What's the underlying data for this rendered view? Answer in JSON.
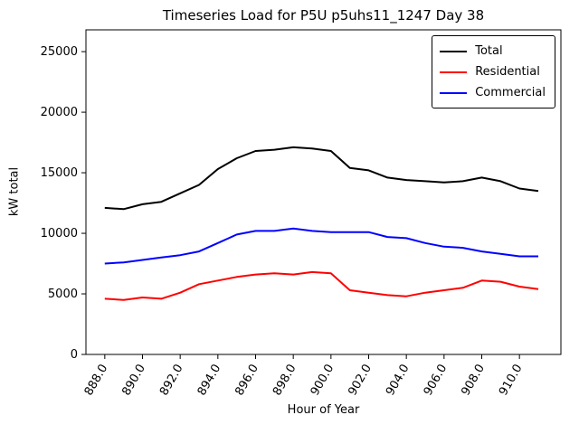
{
  "chart_data": {
    "type": "line",
    "title": "Timeseries Load for P5U p5uhs11_1247  Day 38",
    "xlabel": "Hour of Year",
    "ylabel": "kW total",
    "xlim": [
      887.0,
      912.2
    ],
    "ylim": [
      0,
      26800
    ],
    "grid": false,
    "legend_position": "upper right",
    "x_ticks": [
      888,
      890,
      892,
      894,
      896,
      898,
      900,
      902,
      904,
      906,
      908,
      910
    ],
    "x_tick_labels": [
      "888.0",
      "890.0",
      "892.0",
      "894.0",
      "896.0",
      "898.0",
      "900.0",
      "902.0",
      "904.0",
      "906.0",
      "908.0",
      "910.0"
    ],
    "y_ticks": [
      0,
      5000,
      10000,
      15000,
      20000,
      25000
    ],
    "y_tick_labels": [
      "0",
      "5000",
      "10000",
      "15000",
      "20000",
      "25000"
    ],
    "x": [
      888,
      889,
      890,
      891,
      892,
      893,
      894,
      895,
      896,
      897,
      898,
      899,
      900,
      901,
      902,
      903,
      904,
      905,
      906,
      907,
      908,
      909,
      910,
      911
    ],
    "series": [
      {
        "name": "Total",
        "color": "#000000",
        "values": [
          12100,
          12000,
          12400,
          12600,
          13300,
          14000,
          15300,
          16200,
          16800,
          16900,
          17100,
          17000,
          16800,
          15400,
          15200,
          14600,
          14400,
          14300,
          14200,
          14300,
          14600,
          14300,
          13700,
          13500
        ]
      },
      {
        "name": "Residential",
        "color": "#ff0000",
        "values": [
          4600,
          4500,
          4700,
          4600,
          5100,
          5800,
          6100,
          6400,
          6600,
          6700,
          6600,
          6800,
          6700,
          5300,
          5100,
          4900,
          4800,
          5100,
          5300,
          5500,
          6100,
          6000,
          5600,
          5400
        ]
      },
      {
        "name": "Commercial",
        "color": "#0000ff",
        "values": [
          7500,
          7600,
          7800,
          8000,
          8200,
          8500,
          9200,
          9900,
          10200,
          10200,
          10400,
          10200,
          10100,
          10100,
          10100,
          9700,
          9600,
          9200,
          8900,
          8800,
          8500,
          8300,
          8100,
          8100
        ]
      }
    ]
  }
}
